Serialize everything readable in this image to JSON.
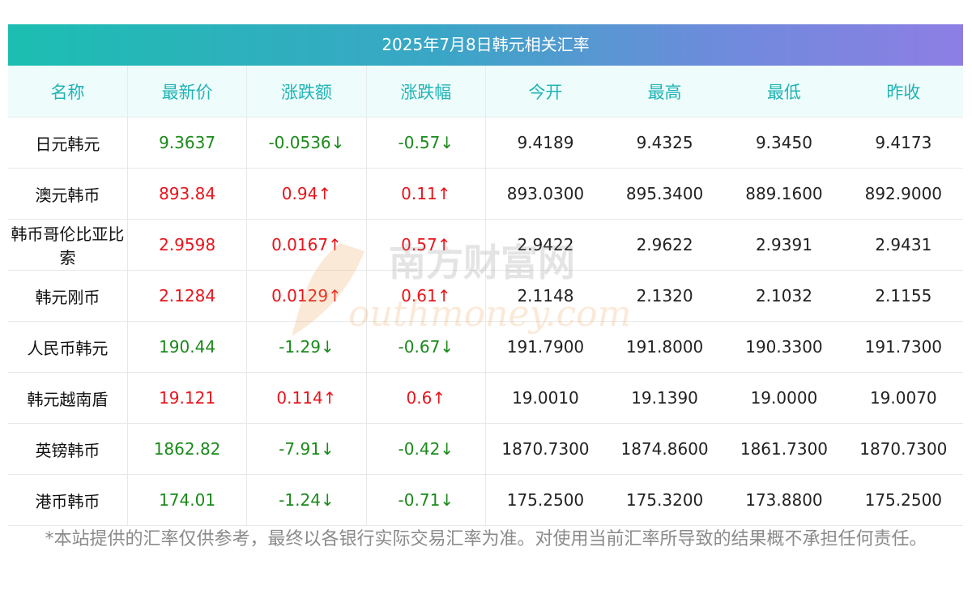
{
  "title": "2025年7月8日韩元相关汇率",
  "headers": [
    "名称",
    "最新价",
    "涨跌额",
    "涨跌幅",
    "今开",
    "最高",
    "最低",
    "昨收"
  ],
  "rows": [
    {
      "name": "日元韩元",
      "latest": "9.3637",
      "change": "-0.0536↓",
      "pct": "-0.57↓",
      "open": "9.4189",
      "high": "9.4325",
      "low": "9.3450",
      "prev": "9.4173",
      "dir": "down"
    },
    {
      "name": "澳元韩币",
      "latest": "893.84",
      "change": "0.94↑",
      "pct": "0.11↑",
      "open": "893.0300",
      "high": "895.3400",
      "low": "889.1600",
      "prev": "892.9000",
      "dir": "up"
    },
    {
      "name": "韩币哥伦比亚比索",
      "latest": "2.9598",
      "change": "0.0167↑",
      "pct": "0.57↑",
      "open": "2.9422",
      "high": "2.9622",
      "low": "2.9391",
      "prev": "2.9431",
      "dir": "up"
    },
    {
      "name": "韩元刚币",
      "latest": "2.1284",
      "change": "0.0129↑",
      "pct": "0.61↑",
      "open": "2.1148",
      "high": "2.1320",
      "low": "2.1032",
      "prev": "2.1155",
      "dir": "up"
    },
    {
      "name": "人民币韩元",
      "latest": "190.44",
      "change": "-1.29↓",
      "pct": "-0.67↓",
      "open": "191.7900",
      "high": "191.8000",
      "low": "190.3300",
      "prev": "191.7300",
      "dir": "down"
    },
    {
      "name": "韩元越南盾",
      "latest": "19.121",
      "change": "0.114↑",
      "pct": "0.6↑",
      "open": "19.0010",
      "high": "19.1390",
      "low": "19.0000",
      "prev": "19.0070",
      "dir": "up"
    },
    {
      "name": "英镑韩币",
      "latest": "1862.82",
      "change": "-7.91↓",
      "pct": "-0.42↓",
      "open": "1870.7300",
      "high": "1874.8600",
      "low": "1861.7300",
      "prev": "1870.7300",
      "dir": "down"
    },
    {
      "name": "港币韩币",
      "latest": "174.01",
      "change": "-1.24↓",
      "pct": "-0.71↓",
      "open": "175.2500",
      "high": "175.3200",
      "low": "173.8800",
      "prev": "175.2500",
      "dir": "down"
    }
  ],
  "note": "*本站提供的汇率仅供参考，最终以各银行实际交易汇率为准。对使用当前汇率所导致的结果概不承担任何责任。",
  "watermark": {
    "cn": "南方财富网",
    "en": "outhmoney.com"
  },
  "colors": {
    "up": "#e8141b",
    "down": "#1a8a1a",
    "header_text": "#22b3b5"
  }
}
